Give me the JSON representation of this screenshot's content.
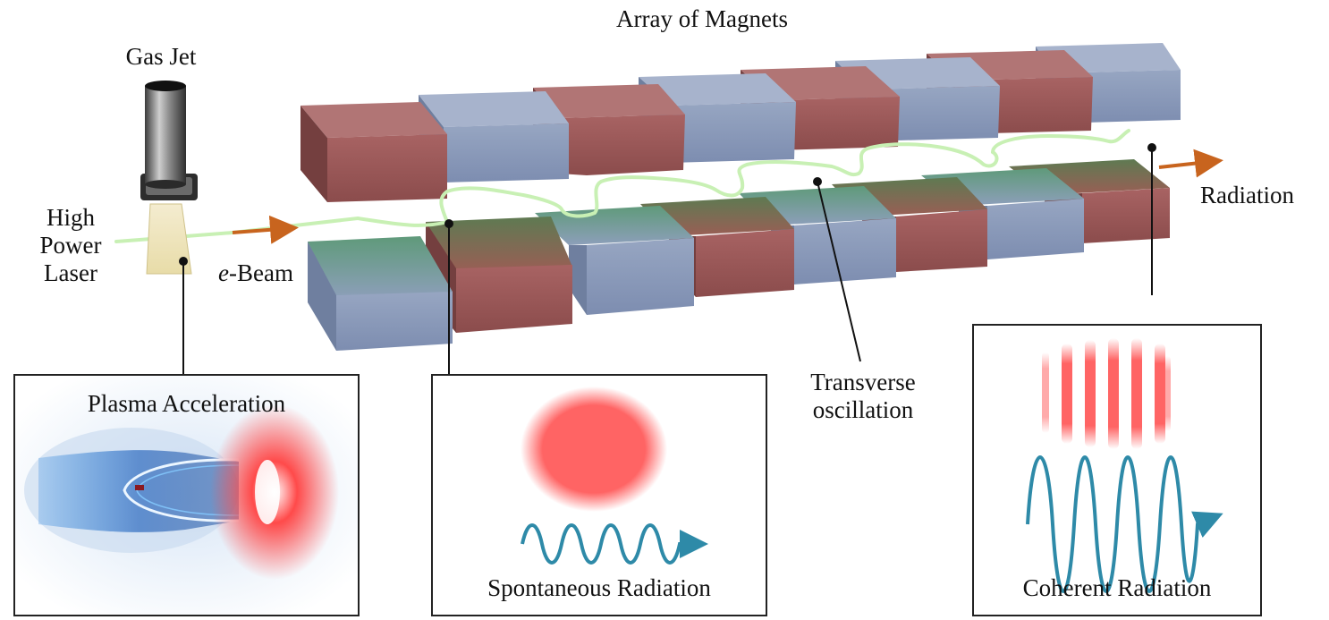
{
  "labels": {
    "magnets": "Array of Magnets",
    "gas_jet": "Gas Jet",
    "laser": [
      "High",
      "Power",
      "Laser"
    ],
    "ebeam_italic": "e",
    "ebeam_rest": "-Beam",
    "radiation": "Radiation",
    "transverse": [
      "Transverse",
      "oscillation"
    ]
  },
  "panels": {
    "plasma": "Plasma Acceleration",
    "spontaneous": "Spontaneous Radiation",
    "coherent": "Coherent Radiation"
  },
  "colors": {
    "magnet_red": "#9a5a5a",
    "magnet_blue": "#8d9cb9",
    "beam": "#c8f0b4",
    "arrow": "#c8641e",
    "radiation_dot": "#ff6464",
    "wave": "#2e8aa8"
  }
}
